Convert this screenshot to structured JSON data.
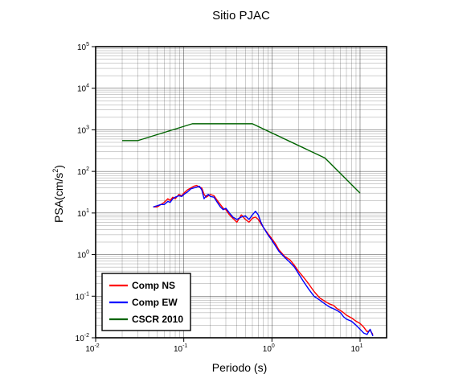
{
  "chart_data": {
    "type": "line",
    "title": "Sitio PJAC",
    "xlabel": "Periodo (s)",
    "ylabel": {
      "base": "PSA(cm/s",
      "sup": "2",
      "end": ")"
    },
    "x_scale": "log",
    "y_scale": "log",
    "xlim": [
      0.01,
      20
    ],
    "ylim": [
      0.01,
      100000
    ],
    "x_ticks": [
      {
        "base": "10",
        "exp": "-2"
      },
      {
        "base": "10",
        "exp": "-1"
      },
      {
        "base": "10",
        "exp": "0"
      },
      {
        "base": "10",
        "exp": "1"
      }
    ],
    "y_ticks": [
      {
        "base": "10",
        "exp": "-2"
      },
      {
        "base": "10",
        "exp": "-1"
      },
      {
        "base": "10",
        "exp": "0"
      },
      {
        "base": "10",
        "exp": "1"
      },
      {
        "base": "10",
        "exp": "2"
      },
      {
        "base": "10",
        "exp": "3"
      },
      {
        "base": "10",
        "exp": "4"
      },
      {
        "base": "10",
        "exp": "5"
      }
    ],
    "grid": true,
    "legend_position": "bottom-left",
    "series": [
      {
        "name": "Comp NS",
        "color": "#ff0000",
        "x": [
          0.045,
          0.05,
          0.055,
          0.06,
          0.066,
          0.07,
          0.075,
          0.08,
          0.088,
          0.095,
          0.1,
          0.11,
          0.12,
          0.13,
          0.14,
          0.15,
          0.16,
          0.17,
          0.18,
          0.19,
          0.2,
          0.22,
          0.24,
          0.26,
          0.28,
          0.3,
          0.33,
          0.36,
          0.4,
          0.45,
          0.5,
          0.55,
          0.6,
          0.65,
          0.7,
          0.75,
          0.8,
          0.9,
          1.0,
          1.1,
          1.2,
          1.4,
          1.6,
          1.8,
          2.0,
          2.3,
          2.6,
          3.0,
          3.5,
          4.0,
          4.5,
          5.0,
          5.5,
          6.0,
          6.5,
          7.0,
          8.0,
          9.0,
          10.0,
          11.0,
          12.0,
          13.0,
          14.0
        ],
        "y": [
          14,
          14,
          16,
          18,
          22,
          20,
          24,
          22,
          28,
          26,
          30,
          36,
          40,
          44,
          46,
          42,
          40,
          28,
          24,
          26,
          28,
          26,
          20,
          16,
          13,
          12,
          9,
          7.5,
          6,
          9,
          7,
          6,
          7.5,
          8,
          7,
          5.5,
          4.5,
          3.2,
          2.4,
          1.8,
          1.3,
          0.9,
          0.75,
          0.55,
          0.4,
          0.28,
          0.2,
          0.13,
          0.09,
          0.075,
          0.065,
          0.06,
          0.05,
          0.045,
          0.04,
          0.035,
          0.03,
          0.025,
          0.022,
          0.018,
          0.014,
          0.015,
          0.012
        ]
      },
      {
        "name": "Comp EW",
        "color": "#0000ff",
        "x": [
          0.045,
          0.05,
          0.055,
          0.06,
          0.066,
          0.07,
          0.075,
          0.08,
          0.088,
          0.095,
          0.1,
          0.11,
          0.12,
          0.13,
          0.14,
          0.15,
          0.16,
          0.17,
          0.18,
          0.19,
          0.2,
          0.22,
          0.24,
          0.26,
          0.28,
          0.3,
          0.33,
          0.36,
          0.4,
          0.45,
          0.5,
          0.55,
          0.6,
          0.65,
          0.7,
          0.75,
          0.8,
          0.9,
          1.0,
          1.1,
          1.2,
          1.4,
          1.6,
          1.8,
          2.0,
          2.3,
          2.6,
          3.0,
          3.5,
          4.0,
          4.5,
          5.0,
          5.5,
          6.0,
          6.5,
          7.0,
          8.0,
          9.0,
          10.0,
          11.0,
          12.0,
          13.0,
          14.0
        ],
        "y": [
          14,
          15,
          16,
          16,
          19,
          18,
          22,
          24,
          26,
          25,
          28,
          32,
          38,
          40,
          42,
          44,
          36,
          22,
          26,
          28,
          25,
          24,
          18,
          14,
          12,
          13,
          10,
          8,
          7,
          8,
          8.5,
          7,
          9,
          11,
          9,
          6,
          4.5,
          3,
          2.2,
          1.6,
          1.2,
          0.85,
          0.65,
          0.5,
          0.35,
          0.22,
          0.15,
          0.1,
          0.08,
          0.065,
          0.055,
          0.05,
          0.045,
          0.04,
          0.032,
          0.028,
          0.025,
          0.02,
          0.016,
          0.013,
          0.012,
          0.016,
          0.011
        ]
      },
      {
        "name": "CSCR 2010",
        "color": "#006400",
        "x": [
          0.02,
          0.03,
          0.125,
          0.6,
          4.0,
          10.0
        ],
        "y": [
          550,
          550,
          1400,
          1400,
          210,
          30
        ]
      }
    ]
  }
}
